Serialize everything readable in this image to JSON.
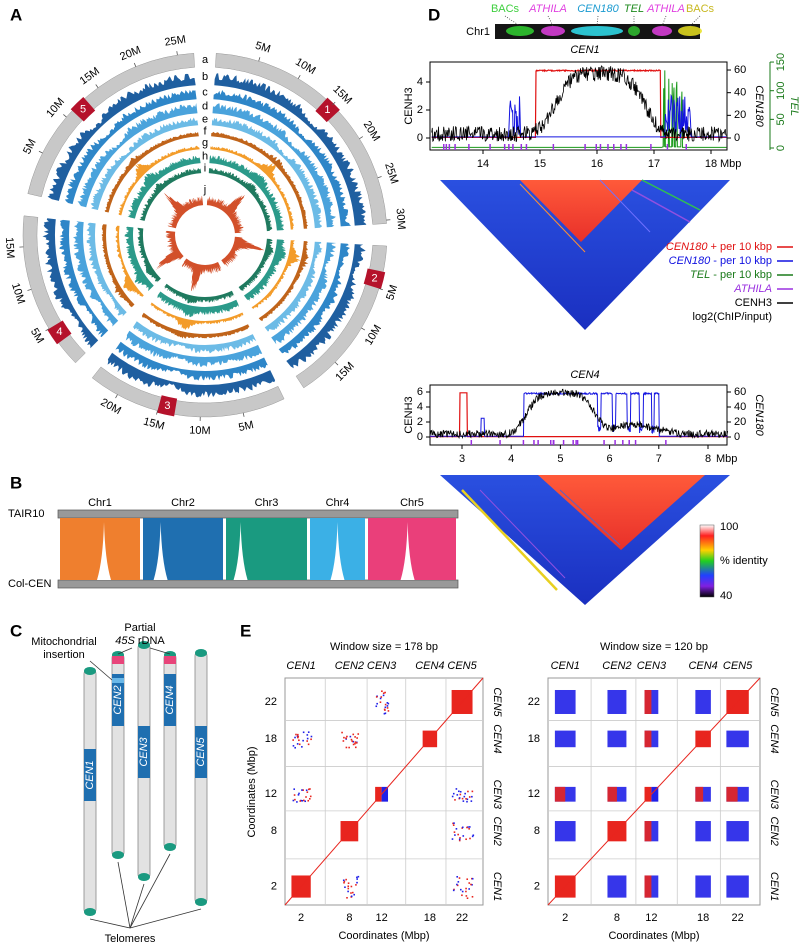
{
  "panel_a": {
    "label": "A",
    "track_letters": [
      "a",
      "b",
      "c",
      "d",
      "e",
      "f",
      "g",
      "h",
      "i",
      "j"
    ],
    "chromosomes": [
      "1",
      "2",
      "3",
      "4",
      "5"
    ],
    "tick_labels": [
      [
        "5M",
        "10M",
        "15M",
        "20M",
        "25M",
        "30M"
      ],
      [
        "5M",
        "10M",
        "15M"
      ],
      [
        "5M",
        "10M",
        "15M",
        "20M"
      ],
      [
        "5M",
        "10M",
        "15M"
      ],
      [
        "5M",
        "10M",
        "15M",
        "20M",
        "25M"
      ]
    ]
  },
  "panel_b": {
    "label": "B",
    "chromosomes": [
      "Chr1",
      "Chr2",
      "Chr3",
      "Chr4",
      "Chr5"
    ],
    "top_genome": "TAIR10",
    "bottom_genome": "Col-CEN"
  },
  "panel_c": {
    "label": "C",
    "mito": [
      "Mitochondrial",
      "insertion"
    ],
    "rdna": {
      "line1": "Partial",
      "italic": "45S",
      "rest": " rDNA"
    },
    "centromeres": [
      "CEN1",
      "CEN2",
      "CEN3",
      "CEN4",
      "CEN5"
    ],
    "telomeres": "Telomeres"
  },
  "panel_d": {
    "label": "D",
    "chromosome": "Chr1",
    "strip_labels": [
      {
        "text": "BACs",
        "color": "#3fcf3f"
      },
      {
        "text": "ATHILA",
        "color": "#e040e0"
      },
      {
        "text": "CEN180",
        "color": "#1a9ad0"
      },
      {
        "text": "TEL",
        "color": "#1f8a1f"
      },
      {
        "text": "ATHILA",
        "color": "#e040e0"
      },
      {
        "text": "BACs",
        "color": "#c8b820"
      }
    ],
    "cen1": {
      "title": "CEN1",
      "left_axis": "CENH3",
      "right_axis": "CEN180",
      "far_axis": "TEL",
      "left_ticks": [
        "0",
        "2",
        "4"
      ],
      "right_ticks": [
        "0",
        "20",
        "40",
        "60"
      ],
      "far_ticks": [
        "0",
        "50",
        "100",
        "150"
      ],
      "x_ticks": [
        "14",
        "15",
        "16",
        "17",
        "18"
      ],
      "x_unit": "Mbp"
    },
    "legend": [
      {
        "italic": "CEN180",
        "text": " + per 10 kbp",
        "color": "#e01010"
      },
      {
        "italic": "CEN180",
        "text": " - per 10 kbp",
        "color": "#1010e0"
      },
      {
        "italic": "TEL",
        "text": " - per 10 kbp",
        "color": "#1a7a1a"
      },
      {
        "italic": "ATHILA",
        "color": "#9a30e0"
      },
      {
        "text": "CENH3",
        "color": "#000000"
      }
    ],
    "legend_note": "log2(ChIP/input)",
    "cen4": {
      "title": "CEN4",
      "left_axis": "CENH3",
      "right_axis": "CEN180",
      "left_ticks": [
        "0",
        "2",
        "4",
        "6"
      ],
      "right_ticks": [
        "0",
        "20",
        "40",
        "60"
      ],
      "x_ticks": [
        "3",
        "4",
        "5",
        "6",
        "7",
        "8"
      ],
      "x_unit": "Mbp"
    },
    "colorscale": {
      "max": "100",
      "label": "% identity",
      "min": "40"
    }
  },
  "panel_e": {
    "label": "E",
    "plots": [
      {
        "title": "Window size = 178 bp"
      },
      {
        "title": "Window size = 120 bp"
      }
    ],
    "centromeres": [
      "CEN1",
      "CEN2",
      "CEN3",
      "CEN4",
      "CEN5"
    ],
    "ticks": [
      "2",
      "8",
      "12",
      "18",
      "22"
    ],
    "axis_label": "Coordinates (Mbp)"
  }
}
